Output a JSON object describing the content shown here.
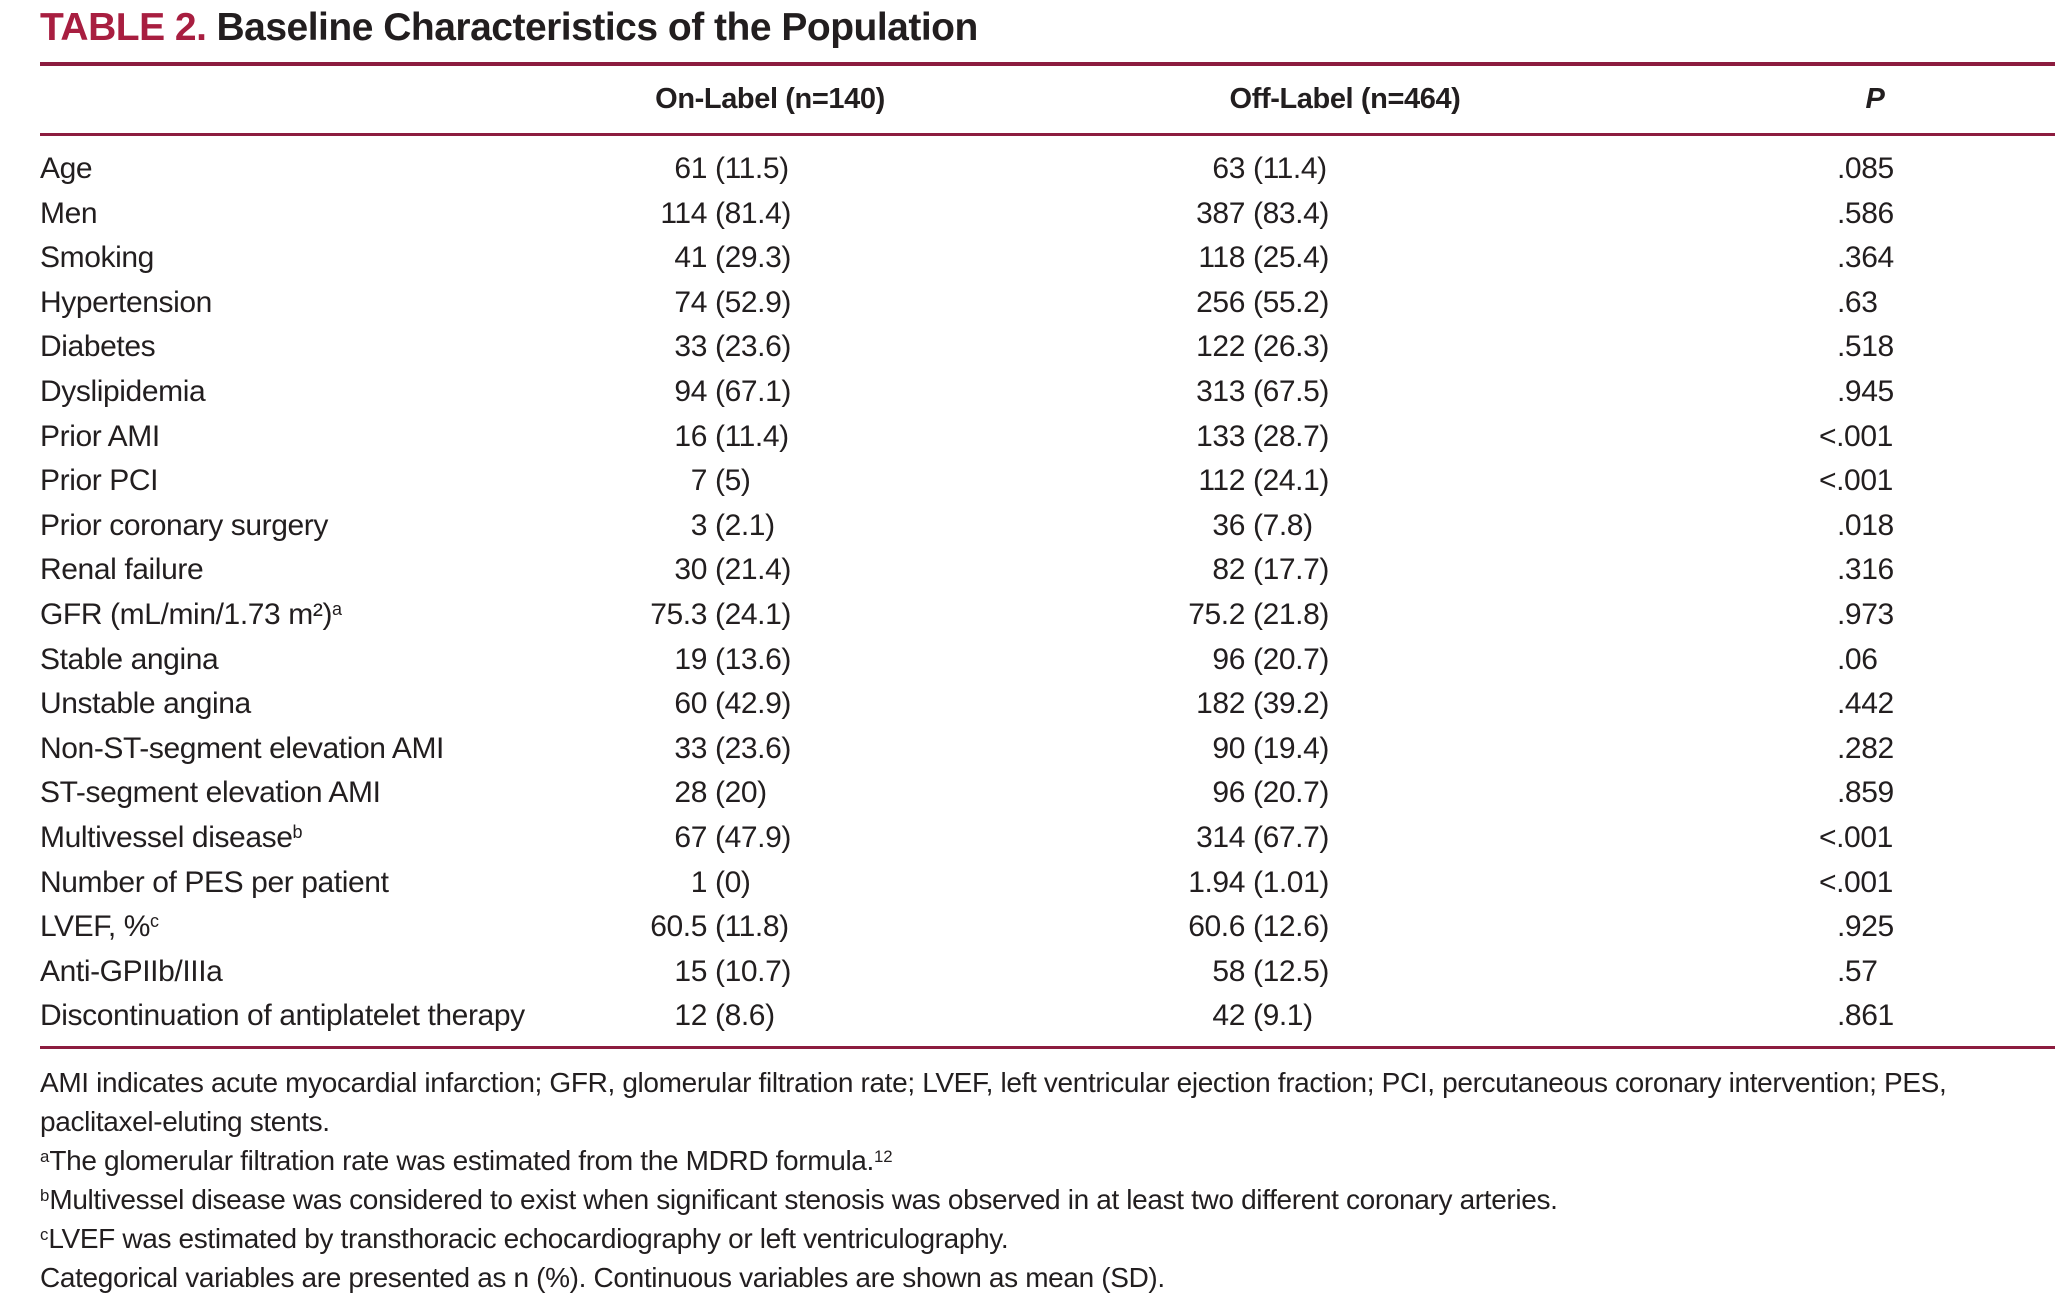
{
  "title": {
    "label": "TABLE 2.",
    "text": "Baseline Characteristics of the Population"
  },
  "columns": {
    "on": "On-Label (n=140)",
    "off": "Off-Label (n=464)",
    "p": "P"
  },
  "rows": [
    {
      "label": "Age",
      "on": "61 (11.5)",
      "off": "63 (11.4)",
      "p": ".085"
    },
    {
      "label": "Men",
      "on": "114 (81.4)",
      "off": "387 (83.4)",
      "p": ".586"
    },
    {
      "label": "Smoking",
      "on": "41 (29.3)",
      "off": "118 (25.4)",
      "p": ".364"
    },
    {
      "label": "Hypertension",
      "on": "74 (52.9)",
      "off": "256 (55.2)",
      "p": ".63"
    },
    {
      "label": "Diabetes",
      "on": "33 (23.6)",
      "off": "122 (26.3)",
      "p": ".518"
    },
    {
      "label": "Dyslipidemia",
      "on": "94 (67.1)",
      "off": "313 (67.5)",
      "p": ".945"
    },
    {
      "label": "Prior AMI",
      "on": "16 (11.4)",
      "off": "133 (28.7)",
      "p": "<.001"
    },
    {
      "label": "Prior PCI",
      "on": "7 (5)",
      "off": "112 (24.1)",
      "p": "<.001"
    },
    {
      "label": "Prior coronary surgery",
      "on": "3 (2.1)",
      "off": "36 (7.8)",
      "p": ".018"
    },
    {
      "label": "Renal failure",
      "on": "30 (21.4)",
      "off": "82 (17.7)",
      "p": ".316"
    },
    {
      "label": "GFR (mL/min/1.73 m²)",
      "sup": "a",
      "on": "75.3 (24.1)",
      "off": "75.2 (21.8)",
      "p": ".973"
    },
    {
      "label": "Stable angina",
      "on": "19 (13.6)",
      "off": "96 (20.7)",
      "p": ".06"
    },
    {
      "label": "Unstable angina",
      "on": "60 (42.9)",
      "off": "182 (39.2)",
      "p": ".442"
    },
    {
      "label": "Non-ST-segment elevation AMI",
      "on": "33 (23.6)",
      "off": "90 (19.4)",
      "p": ".282"
    },
    {
      "label": "ST-segment elevation AMI",
      "on": "28 (20)",
      "off": "96 (20.7)",
      "p": ".859"
    },
    {
      "label": "Multivessel disease",
      "sup": "b",
      "on": "67 (47.9)",
      "off": "314 (67.7)",
      "p": "<.001"
    },
    {
      "label": "Number of PES per patient",
      "on": "1 (0)",
      "off": "1.94 (1.01)",
      "p": "<.001"
    },
    {
      "label": "LVEF, %",
      "sup": "c",
      "on": "60.5 (11.8)",
      "off": "60.6 (12.6)",
      "p": ".925"
    },
    {
      "label": "Anti-GPIIb/IIIa",
      "on": "15 (10.7)",
      "off": "58 (12.5)",
      "p": ".57"
    },
    {
      "label": "Discontinuation of antiplatelet therapy",
      "on": "12 (8.6)",
      "off": "42 (9.1)",
      "p": ".861"
    }
  ],
  "footnotes": [
    {
      "text": "AMI indicates acute myocardial infarction; GFR, glomerular filtration rate; LVEF, left ventricular ejection fraction; PCI, percutaneous coronary intervention; PES,"
    },
    {
      "text": "paclitaxel-eluting stents."
    },
    {
      "sup": "a",
      "text": "The glomerular filtration rate was estimated from the MDRD formula.",
      "ref": "12"
    },
    {
      "sup": "b",
      "text": "Multivessel disease was considered to exist when significant stenosis was observed in at least two different coronary arteries."
    },
    {
      "sup": "c",
      "text": "LVEF was estimated by transthoracic echocardiography or left ventriculography."
    },
    {
      "text": "Categorical variables are presented as n (%). Continuous variables are shown as mean (SD)."
    }
  ],
  "colors": {
    "accent": "#A81E40",
    "rule": "#8C1C3F",
    "text": "#221E1F"
  }
}
